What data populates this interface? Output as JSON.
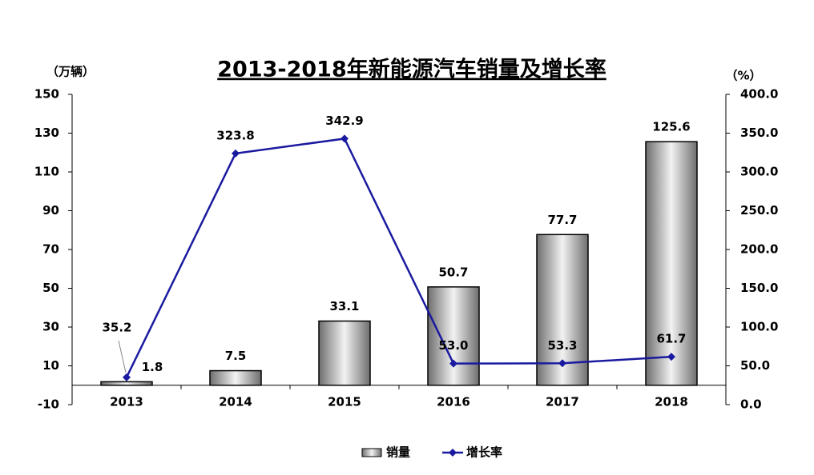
{
  "chart_data": {
    "type": "bar",
    "title": "2013-2018年新能源汽车销量及增长率",
    "y_label": "（万辆）",
    "y2_label": "（%）",
    "categories": [
      "2013",
      "2014",
      "2015",
      "2016",
      "2017",
      "2018"
    ],
    "series": [
      {
        "name": "销量",
        "type": "bar",
        "color": "#9a9a9a",
        "values": [
          1.8,
          7.5,
          33.1,
          50.7,
          77.7,
          125.6
        ]
      },
      {
        "name": "增长率",
        "type": "line",
        "axis": "y2",
        "color": "#1a1aa0",
        "values": [
          35.2,
          323.8,
          342.9,
          53.0,
          53.3,
          61.7
        ],
        "value_labels": [
          "35.2",
          "323.8",
          "342.9",
          "53.0",
          "53.3",
          "61.7"
        ]
      }
    ],
    "ylim": [
      -10,
      150
    ],
    "yticks": [
      -10,
      10,
      30,
      50,
      70,
      90,
      110,
      130,
      150
    ],
    "y2lim": [
      0,
      400
    ],
    "y2ticks": [
      {
        "value": 0,
        "label": "0.0"
      },
      {
        "value": 50,
        "label": "50.0"
      },
      {
        "value": 100,
        "label": "100.0"
      },
      {
        "value": 150,
        "label": "150.0"
      },
      {
        "value": 200,
        "label": "200.0"
      },
      {
        "value": 250,
        "label": "250.0"
      },
      {
        "value": 300,
        "label": "300.0"
      },
      {
        "value": 350,
        "label": "350.0"
      },
      {
        "value": 400,
        "label": "400.0"
      }
    ],
    "legend": "bottom"
  }
}
